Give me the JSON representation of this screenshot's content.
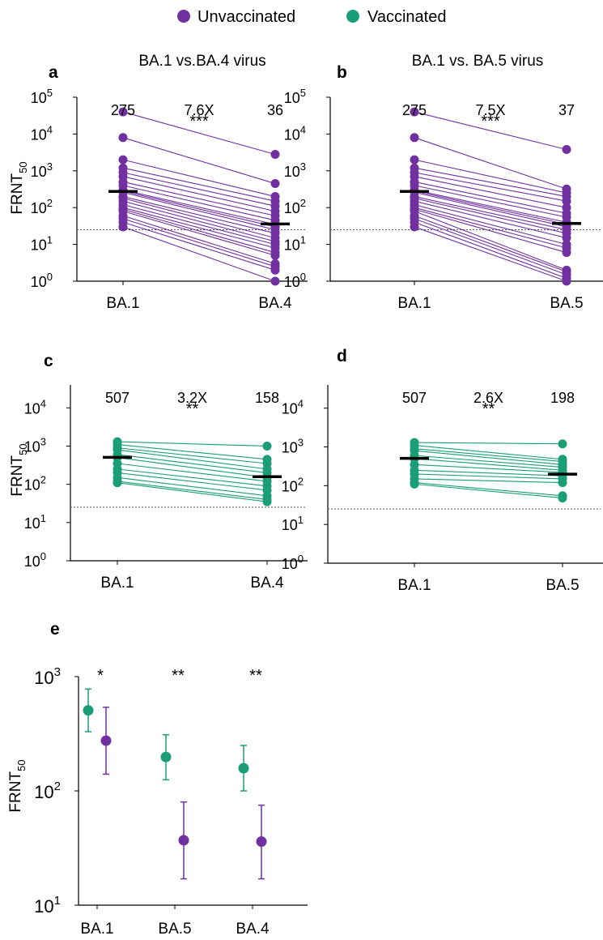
{
  "legend": [
    {
      "label": "Unvaccinated",
      "color": "#7030a0"
    },
    {
      "label": "Vaccinated",
      "color": "#1b9e77"
    }
  ],
  "colors": {
    "unvaccinated": "#7030a0",
    "vaccinated": "#1b9e77",
    "median_bar": "#000000",
    "threshold_line": "#555555"
  },
  "chart_data": [
    {
      "panel": "a",
      "type": "scatter",
      "title": "BA.1 vs.BA.4 virus",
      "ylabel": "FRNT50",
      "yscale": "log",
      "ylim": [
        1,
        100000
      ],
      "categories": [
        "BA.1",
        "BA.4"
      ],
      "group": "Unvaccinated",
      "medians": [
        275,
        36
      ],
      "median_labels": [
        "275",
        "36"
      ],
      "fold_change": "7.6X",
      "significance": "***",
      "threshold": 25,
      "pairs": [
        [
          40000,
          2800
        ],
        [
          8000,
          450
        ],
        [
          2000,
          200
        ],
        [
          1200,
          150
        ],
        [
          900,
          110
        ],
        [
          700,
          80
        ],
        [
          500,
          60
        ],
        [
          400,
          45
        ],
        [
          300,
          35
        ],
        [
          280,
          30
        ],
        [
          260,
          25
        ],
        [
          200,
          20
        ],
        [
          180,
          15
        ],
        [
          150,
          12
        ],
        [
          120,
          10
        ],
        [
          100,
          8
        ],
        [
          90,
          6
        ],
        [
          80,
          5
        ],
        [
          60,
          3
        ],
        [
          50,
          2.5
        ],
        [
          40,
          2
        ],
        [
          30,
          1
        ]
      ]
    },
    {
      "panel": "b",
      "type": "scatter",
      "title": "BA.1 vs. BA.5 virus",
      "ylabel": "",
      "yscale": "log",
      "ylim": [
        1,
        100000
      ],
      "categories": [
        "BA.1",
        "BA.5"
      ],
      "group": "Unvaccinated",
      "medians": [
        275,
        37
      ],
      "median_labels": [
        "275",
        "37"
      ],
      "fold_change": "7.5X",
      "significance": "***",
      "threshold": 25,
      "pairs": [
        [
          40000,
          3800
        ],
        [
          8000,
          320
        ],
        [
          2000,
          250
        ],
        [
          1200,
          200
        ],
        [
          900,
          150
        ],
        [
          700,
          100
        ],
        [
          500,
          70
        ],
        [
          400,
          55
        ],
        [
          300,
          40
        ],
        [
          280,
          35
        ],
        [
          260,
          30
        ],
        [
          200,
          25
        ],
        [
          180,
          20
        ],
        [
          150,
          15
        ],
        [
          120,
          10
        ],
        [
          100,
          8
        ],
        [
          90,
          6
        ],
        [
          80,
          2
        ],
        [
          60,
          1.8
        ],
        [
          50,
          1.5
        ],
        [
          40,
          1.2
        ],
        [
          30,
          1
        ]
      ]
    },
    {
      "panel": "c",
      "type": "scatter",
      "title": "",
      "ylabel": "FRNT50",
      "yscale": "log",
      "ylim": [
        1,
        40000
      ],
      "categories": [
        "BA.1",
        "BA.4"
      ],
      "group": "Vaccinated",
      "medians": [
        507,
        158
      ],
      "median_labels": [
        "507",
        "158"
      ],
      "fold_change": "3.2X",
      "significance": "**",
      "threshold": 25,
      "pairs": [
        [
          1300,
          1000
        ],
        [
          1100,
          450
        ],
        [
          900,
          350
        ],
        [
          800,
          250
        ],
        [
          600,
          200
        ],
        [
          500,
          150
        ],
        [
          350,
          120
        ],
        [
          250,
          90
        ],
        [
          200,
          70
        ],
        [
          150,
          50
        ],
        [
          120,
          40
        ],
        [
          110,
          35
        ]
      ]
    },
    {
      "panel": "d",
      "type": "scatter",
      "title": "",
      "ylabel": "",
      "yscale": "log",
      "ylim": [
        1,
        40000
      ],
      "categories": [
        "BA.1",
        "BA.5"
      ],
      "group": "Vaccinated",
      "medians": [
        507,
        198
      ],
      "median_labels": [
        "507",
        "198"
      ],
      "fold_change": "2.6X",
      "significance": "**",
      "threshold": 25,
      "pairs": [
        [
          1300,
          1200
        ],
        [
          1100,
          480
        ],
        [
          900,
          420
        ],
        [
          800,
          350
        ],
        [
          600,
          300
        ],
        [
          500,
          250
        ],
        [
          350,
          220
        ],
        [
          250,
          180
        ],
        [
          200,
          150
        ],
        [
          150,
          120
        ],
        [
          120,
          55
        ],
        [
          110,
          48
        ]
      ]
    },
    {
      "panel": "e",
      "type": "scatter",
      "title": "",
      "ylabel": "FRNT50",
      "yscale": "log",
      "ylim": [
        10,
        1000
      ],
      "categories": [
        "BA.1",
        "BA.5",
        "BA.4"
      ],
      "significance": [
        "*",
        "**",
        "**"
      ],
      "series": [
        {
          "name": "Vaccinated",
          "values": [
            507,
            198,
            158
          ],
          "lower": [
            330,
            125,
            100
          ],
          "upper": [
            780,
            310,
            250
          ]
        },
        {
          "name": "Unvaccinated",
          "values": [
            275,
            37,
            36
          ],
          "lower": [
            140,
            17,
            17
          ],
          "upper": [
            540,
            80,
            75
          ]
        }
      ]
    }
  ]
}
